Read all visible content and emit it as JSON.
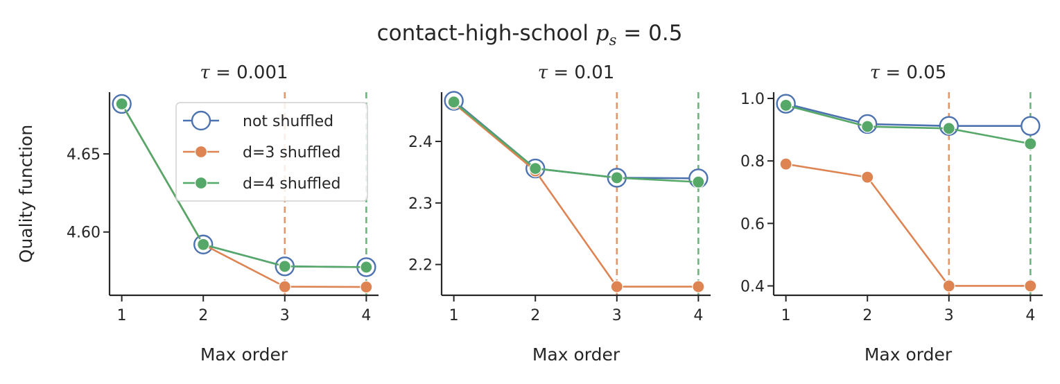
{
  "figure": {
    "title_text": "contact-high-school",
    "title_math_var": "p",
    "title_math_sub": "s",
    "title_math_rest": " = 0.5"
  },
  "colors": {
    "not_shuffled": "#4c72b0",
    "d3_shuffled": "#dd8452",
    "d4_shuffled": "#55a868",
    "axis": "#262626"
  },
  "legend": {
    "location": "upper right of first panel",
    "entries": [
      "not shuffled",
      "d=3 shuffled",
      "d=4 shuffled"
    ]
  },
  "chart_data": [
    {
      "type": "line",
      "title_symbol": "τ",
      "title_value": " = 0.001",
      "xlabel": "Max order",
      "ylabel": "Quality function",
      "x": [
        1,
        2,
        3,
        4
      ],
      "xlim": [
        0.85,
        4.15
      ],
      "ylim": [
        4.5595,
        4.6895
      ],
      "yticks": [
        4.6,
        4.65
      ],
      "ytick_labels": [
        "4.60",
        "4.65"
      ],
      "xtick_labels": [
        "1",
        "2",
        "3",
        "4"
      ],
      "series": [
        {
          "name": "not shuffled",
          "values": [
            4.682,
            4.592,
            4.578,
            4.5775
          ],
          "marker": "open-circle"
        },
        {
          "name": "d=3 shuffled",
          "values": [
            4.682,
            4.592,
            4.565,
            4.5648
          ],
          "marker": "filled-circle"
        },
        {
          "name": "d=4 shuffled",
          "values": [
            4.682,
            4.592,
            4.578,
            4.5775
          ],
          "marker": "filled-circle"
        }
      ],
      "vlines": [
        {
          "x": 3,
          "series": "d=3 shuffled"
        },
        {
          "x": 4,
          "series": "d=4 shuffled"
        }
      ],
      "show_legend": true
    },
    {
      "type": "line",
      "title_symbol": "τ",
      "title_value": " = 0.01",
      "xlabel": "Max order",
      "ylabel": "",
      "x": [
        1,
        2,
        3,
        4
      ],
      "xlim": [
        0.85,
        4.15
      ],
      "ylim": [
        2.15,
        2.48
      ],
      "yticks": [
        2.2,
        2.3,
        2.4
      ],
      "ytick_labels": [
        "2.2",
        "2.3",
        "2.4"
      ],
      "xtick_labels": [
        "1",
        "2",
        "3",
        "4"
      ],
      "series": [
        {
          "name": "not shuffled",
          "values": [
            2.466,
            2.356,
            2.341,
            2.34
          ],
          "marker": "open-circle"
        },
        {
          "name": "d=3 shuffled",
          "values": [
            2.462,
            2.352,
            2.164,
            2.164
          ],
          "marker": "filled-circle"
        },
        {
          "name": "d=4 shuffled",
          "values": [
            2.464,
            2.356,
            2.341,
            2.334
          ],
          "marker": "filled-circle"
        }
      ],
      "vlines": [
        {
          "x": 3,
          "series": "d=3 shuffled"
        },
        {
          "x": 4,
          "series": "d=4 shuffled"
        }
      ],
      "show_legend": false
    },
    {
      "type": "line",
      "title_symbol": "τ",
      "title_value": " = 0.05",
      "xlabel": "Max order",
      "ylabel": "",
      "x": [
        1,
        2,
        3,
        4
      ],
      "xlim": [
        0.85,
        4.15
      ],
      "ylim": [
        0.37,
        1.02
      ],
      "yticks": [
        0.4,
        0.6,
        0.8,
        1.0
      ],
      "ytick_labels": [
        "0.4",
        "0.6",
        "0.8",
        "1.0"
      ],
      "xtick_labels": [
        "1",
        "2",
        "3",
        "4"
      ],
      "series": [
        {
          "name": "not shuffled",
          "values": [
            0.983,
            0.918,
            0.912,
            0.912
          ],
          "marker": "open-circle"
        },
        {
          "name": "d=3 shuffled",
          "values": [
            0.79,
            0.748,
            0.4,
            0.4
          ],
          "marker": "filled-circle"
        },
        {
          "name": "d=4 shuffled",
          "values": [
            0.978,
            0.91,
            0.904,
            0.855
          ],
          "marker": "filled-circle"
        }
      ],
      "vlines": [
        {
          "x": 3,
          "series": "d=3 shuffled"
        },
        {
          "x": 4,
          "series": "d=4 shuffled"
        }
      ],
      "show_legend": false
    }
  ]
}
